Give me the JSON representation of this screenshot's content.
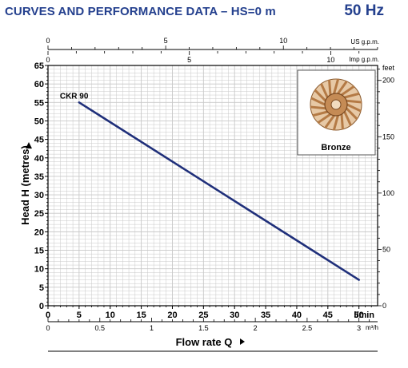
{
  "header": {
    "title": "CURVES AND PERFORMANCE DATA  –  HS=0 m",
    "frequency": "50 Hz"
  },
  "inset": {
    "label": "Bronze",
    "icon": "bronze-impeller-icon",
    "color": "#b47a45"
  },
  "colors": {
    "title": "#24408e",
    "curve": "#1f2f7a",
    "grid": "#c8c8c8"
  },
  "chart_data": {
    "type": "line",
    "xlabel": "Flow rate Q",
    "ylabel": "Head H (metres)",
    "x_unit": "l/min",
    "xlim": [
      0,
      53
    ],
    "ylim": [
      0,
      65
    ],
    "x_ticks": [
      "0",
      "5",
      "10",
      "15",
      "20",
      "25",
      "30",
      "35",
      "40",
      "45",
      "50"
    ],
    "y_ticks": [
      "0",
      "5",
      "10",
      "15",
      "20",
      "25",
      "30",
      "35",
      "40",
      "45",
      "50",
      "55",
      "60",
      "65"
    ],
    "series": [
      {
        "name": "CKR 90",
        "x": [
          5,
          50
        ],
        "y": [
          55,
          7
        ]
      }
    ],
    "secondary_axes": {
      "us_gpm": {
        "unit": "US g.p.m.",
        "ticks": [
          "0",
          "5",
          "10"
        ]
      },
      "imp_gpm": {
        "unit": "Imp g.p.m.",
        "ticks": [
          "0",
          "5",
          "10"
        ]
      },
      "feet": {
        "unit": "feet",
        "ticks": [
          "0",
          "50",
          "100",
          "150",
          "200"
        ]
      },
      "m3h": {
        "unit": "m³/h",
        "ticks": [
          "0",
          "0.5",
          "1",
          "1.5",
          "2",
          "2.5",
          "3"
        ]
      }
    },
    "grid": true
  }
}
